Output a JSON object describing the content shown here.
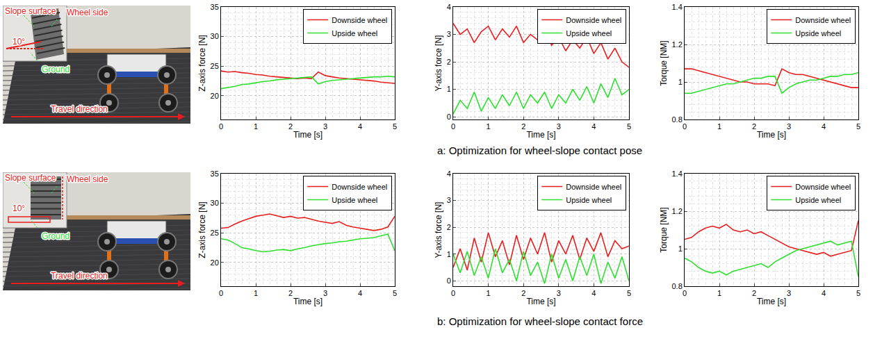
{
  "figure": {
    "rows": [
      {
        "caption": "a: Optimization for wheel-slope contact pose",
        "photo_labels": [
          "Slope surface",
          "Wheel side",
          "10°",
          "Ground",
          "Travel direction"
        ]
      },
      {
        "caption": "b: Optimization for wheel-slope contact force",
        "photo_labels": [
          "Slope surface",
          "Wheel side",
          "10°",
          "Ground",
          "Travel direction"
        ]
      }
    ]
  },
  "chart_data": [
    {
      "type": "line",
      "x_label": "Time [s]",
      "y_label": "Z-axis force [N]",
      "x": [
        0,
        0.2,
        0.4,
        0.6,
        0.8,
        1,
        1.2,
        1.4,
        1.6,
        1.8,
        2,
        2.2,
        2.4,
        2.6,
        2.8,
        3,
        3.2,
        3.4,
        3.6,
        3.8,
        4,
        4.2,
        4.4,
        4.6,
        4.8,
        5
      ],
      "xlim": [
        0,
        5
      ],
      "xticks": [
        0,
        1,
        2,
        3,
        4,
        5
      ],
      "ylim": [
        16,
        35
      ],
      "yticks": [
        20,
        25,
        30,
        35
      ],
      "grid": true,
      "legend": "upper right",
      "series": [
        {
          "name": "Downside wheel",
          "color": "#e81e1e",
          "values": [
            24.2,
            24.0,
            24.1,
            23.9,
            23.8,
            23.6,
            23.5,
            23.3,
            23.2,
            23.1,
            23.0,
            22.9,
            23.0,
            22.9,
            24.0,
            23.4,
            23.2,
            23.0,
            22.9,
            22.8,
            22.7,
            22.6,
            22.5,
            22.3,
            22.2,
            22.1
          ]
        },
        {
          "name": "Upside wheel",
          "color": "#2ee02e",
          "values": [
            21.2,
            21.4,
            21.6,
            21.9,
            22.0,
            22.2,
            22.4,
            22.5,
            22.7,
            22.8,
            22.9,
            23.0,
            23.1,
            23.2,
            22.0,
            22.4,
            22.6,
            22.7,
            22.8,
            22.9,
            23.0,
            23.1,
            23.2,
            23.2,
            23.3,
            23.2
          ]
        }
      ]
    },
    {
      "type": "line",
      "x_label": "Time [s]",
      "y_label": "Y-axis force [N]",
      "x": [
        0,
        0.2,
        0.4,
        0.6,
        0.8,
        1,
        1.2,
        1.4,
        1.6,
        1.8,
        2,
        2.2,
        2.4,
        2.6,
        2.8,
        3,
        3.2,
        3.4,
        3.6,
        3.8,
        4,
        4.2,
        4.4,
        4.6,
        4.8,
        5
      ],
      "xlim": [
        0,
        5
      ],
      "xticks": [
        0,
        1,
        2,
        3,
        4,
        5
      ],
      "ylim": [
        -0.1,
        4
      ],
      "yticks": [
        0,
        1,
        2,
        3,
        4
      ],
      "grid": true,
      "legend": "upper right",
      "series": [
        {
          "name": "Downside wheel",
          "color": "#e81e1e",
          "values": [
            3.4,
            3.0,
            3.2,
            2.7,
            3.1,
            3.3,
            2.8,
            3.2,
            2.9,
            3.3,
            2.7,
            3.0,
            2.8,
            3.2,
            2.6,
            2.9,
            2.4,
            2.8,
            2.5,
            2.9,
            2.3,
            2.7,
            2.1,
            2.5,
            2.0,
            1.8
          ]
        },
        {
          "name": "Upside wheel",
          "color": "#2ee02e",
          "values": [
            0.1,
            0.6,
            0.3,
            0.9,
            0.2,
            0.7,
            0.3,
            0.8,
            0.4,
            0.9,
            0.3,
            0.8,
            0.5,
            0.9,
            0.3,
            0.8,
            0.5,
            1.0,
            0.6,
            1.1,
            0.5,
            1.2,
            0.7,
            1.4,
            0.8,
            1.0
          ]
        }
      ]
    },
    {
      "type": "line",
      "x_label": "Time [s]",
      "y_label": "Torque [NM]",
      "x": [
        0,
        0.2,
        0.4,
        0.6,
        0.8,
        1,
        1.2,
        1.4,
        1.6,
        1.8,
        2,
        2.2,
        2.4,
        2.6,
        2.8,
        3,
        3.2,
        3.4,
        3.6,
        3.8,
        4,
        4.2,
        4.4,
        4.6,
        4.8,
        5
      ],
      "xlim": [
        0,
        5
      ],
      "xticks": [
        0,
        1,
        2,
        3,
        4,
        5
      ],
      "ylim": [
        0.8,
        1.4
      ],
      "yticks": [
        0.8,
        1,
        1.2,
        1.4
      ],
      "grid": true,
      "legend": "upper right",
      "series": [
        {
          "name": "Downside wheel",
          "color": "#e81e1e",
          "values": [
            1.07,
            1.07,
            1.06,
            1.05,
            1.04,
            1.03,
            1.02,
            1.01,
            1.0,
            1.0,
            0.99,
            0.99,
            0.99,
            0.98,
            1.07,
            1.05,
            1.04,
            1.04,
            1.03,
            1.02,
            1.01,
            1.0,
            0.99,
            0.98,
            0.97,
            0.97
          ]
        },
        {
          "name": "Upside wheel",
          "color": "#2ee02e",
          "values": [
            0.94,
            0.94,
            0.95,
            0.96,
            0.97,
            0.98,
            0.99,
            0.99,
            1.0,
            1.01,
            1.02,
            1.02,
            1.03,
            1.03,
            0.94,
            0.97,
            0.99,
            1.0,
            1.01,
            1.01,
            1.02,
            1.03,
            1.03,
            1.04,
            1.04,
            1.05
          ]
        }
      ]
    },
    {
      "type": "line",
      "x_label": "Time [s]",
      "y_label": "Z-axis force [N]",
      "x": [
        0,
        0.2,
        0.4,
        0.6,
        0.8,
        1,
        1.2,
        1.4,
        1.6,
        1.8,
        2,
        2.2,
        2.4,
        2.6,
        2.8,
        3,
        3.2,
        3.4,
        3.6,
        3.8,
        4,
        4.2,
        4.4,
        4.6,
        4.8,
        5
      ],
      "xlim": [
        0,
        5
      ],
      "xticks": [
        0,
        1,
        2,
        3,
        4,
        5
      ],
      "ylim": [
        16,
        35
      ],
      "yticks": [
        20,
        25,
        30,
        35
      ],
      "grid": true,
      "legend": "upper right",
      "series": [
        {
          "name": "Downside wheel",
          "color": "#e81e1e",
          "values": [
            25.8,
            25.9,
            26.5,
            27.0,
            27.4,
            27.8,
            28.0,
            28.2,
            27.9,
            27.6,
            27.8,
            27.5,
            27.6,
            27.3,
            27.0,
            26.8,
            26.6,
            26.9,
            26.3,
            26.0,
            25.8,
            25.6,
            25.4,
            25.6,
            26.0,
            27.8
          ]
        },
        {
          "name": "Upside wheel",
          "color": "#2ee02e",
          "values": [
            24.0,
            23.8,
            23.2,
            22.5,
            22.3,
            22.0,
            21.8,
            21.9,
            22.1,
            22.2,
            22.0,
            22.3,
            22.5,
            22.8,
            23.0,
            23.2,
            23.3,
            23.5,
            23.6,
            23.8,
            24.0,
            24.1,
            24.2,
            24.5,
            24.8,
            22.0
          ]
        }
      ]
    },
    {
      "type": "line",
      "x_label": "Time [s]",
      "y_label": "Y-axis force [N]",
      "x": [
        0,
        0.2,
        0.4,
        0.6,
        0.8,
        1,
        1.2,
        1.4,
        1.6,
        1.8,
        2,
        2.2,
        2.4,
        2.6,
        2.8,
        3,
        3.2,
        3.4,
        3.6,
        3.8,
        4,
        4.2,
        4.4,
        4.6,
        4.8,
        5
      ],
      "xlim": [
        0,
        5
      ],
      "xticks": [
        0,
        1,
        2,
        3,
        4,
        5
      ],
      "ylim": [
        -0.2,
        4
      ],
      "yticks": [
        0,
        1,
        2,
        3,
        4
      ],
      "grid": true,
      "legend": "upper right",
      "series": [
        {
          "name": "Downside wheel",
          "color": "#e81e1e",
          "values": [
            0.5,
            1.2,
            0.4,
            1.6,
            0.7,
            1.8,
            0.9,
            1.5,
            0.6,
            1.7,
            0.8,
            1.6,
            1.0,
            1.8,
            0.7,
            1.5,
            1.0,
            1.7,
            0.8,
            1.6,
            1.1,
            1.8,
            0.9,
            1.5,
            1.2,
            1.3
          ]
        },
        {
          "name": "Upside wheel",
          "color": "#2ee02e",
          "values": [
            1.0,
            0.3,
            1.1,
            0.2,
            0.9,
            0.1,
            1.2,
            0.3,
            0.8,
            0.0,
            1.1,
            0.2,
            0.7,
            -0.1,
            1.0,
            0.1,
            0.8,
            0.0,
            0.9,
            0.2,
            1.0,
            -0.1,
            0.7,
            0.1,
            0.9,
            0.0
          ]
        }
      ]
    },
    {
      "type": "line",
      "x_label": "Time [s]",
      "y_label": "Torque [NM]",
      "x": [
        0,
        0.2,
        0.4,
        0.6,
        0.8,
        1,
        1.2,
        1.4,
        1.6,
        1.8,
        2,
        2.2,
        2.4,
        2.6,
        2.8,
        3,
        3.2,
        3.4,
        3.6,
        3.8,
        4,
        4.2,
        4.4,
        4.6,
        4.8,
        5
      ],
      "xlim": [
        0,
        5
      ],
      "xticks": [
        0,
        1,
        2,
        3,
        4,
        5
      ],
      "ylim": [
        0.8,
        1.4
      ],
      "yticks": [
        0.8,
        1,
        1.2,
        1.4
      ],
      "grid": true,
      "legend": "upper right",
      "series": [
        {
          "name": "Downside wheel",
          "color": "#e81e1e",
          "values": [
            1.05,
            1.06,
            1.09,
            1.11,
            1.12,
            1.11,
            1.13,
            1.1,
            1.09,
            1.1,
            1.08,
            1.09,
            1.07,
            1.05,
            1.03,
            1.01,
            1.0,
            0.99,
            0.98,
            0.97,
            0.98,
            0.96,
            0.97,
            0.98,
            0.99,
            1.15
          ]
        },
        {
          "name": "Upside wheel",
          "color": "#2ee02e",
          "values": [
            0.95,
            0.93,
            0.9,
            0.88,
            0.87,
            0.88,
            0.86,
            0.88,
            0.89,
            0.9,
            0.91,
            0.92,
            0.9,
            0.93,
            0.95,
            0.97,
            0.99,
            1.0,
            1.01,
            1.02,
            1.03,
            1.04,
            1.02,
            1.03,
            1.04,
            0.85
          ]
        }
      ]
    }
  ]
}
